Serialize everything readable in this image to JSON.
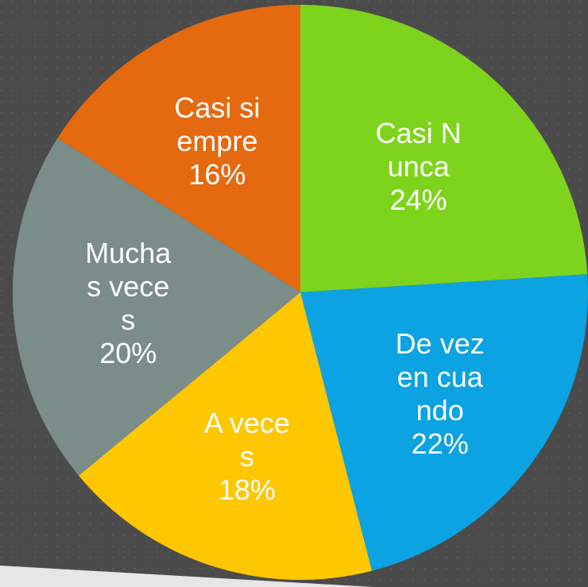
{
  "chart_data": {
    "type": "pie",
    "categories": [
      "Casi Nunca",
      "De vez en cuando",
      "A veces",
      "Muchas veces",
      "Casi siempre"
    ],
    "values": [
      24,
      22,
      18,
      20,
      16
    ],
    "value_labels": [
      "24%",
      "22%",
      "18%",
      "20%",
      "16%"
    ],
    "colors": [
      "#7ed31c",
      "#0ba3e2",
      "#ffc700",
      "#7a8d89",
      "#e5690f"
    ]
  }
}
